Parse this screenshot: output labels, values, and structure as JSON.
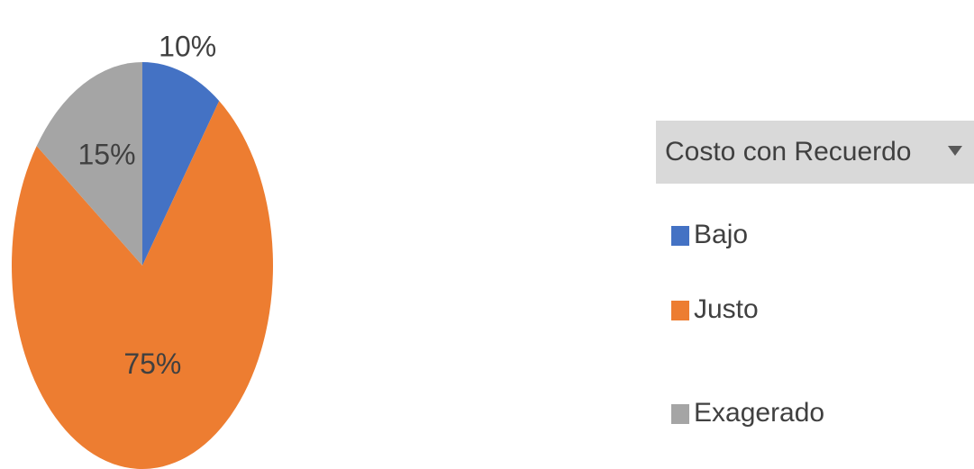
{
  "chart_data": {
    "type": "pie",
    "legend_title": "Costo con Recuerdo",
    "categories": [
      "Bajo",
      "Justo",
      "Exagerado"
    ],
    "values": [
      10,
      75,
      15
    ],
    "value_labels": [
      "10%",
      "75%",
      "15%"
    ],
    "colors": [
      "#4472c4",
      "#ed7d31",
      "#a5a5a5"
    ],
    "legend": "right"
  }
}
